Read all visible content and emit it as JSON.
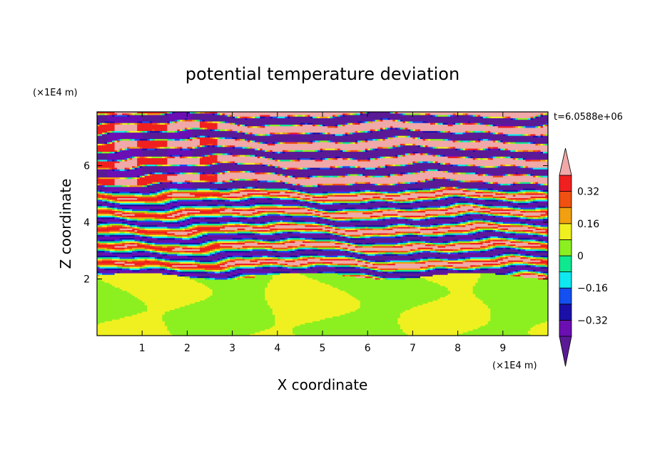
{
  "chart_data": {
    "type": "heatmap",
    "title": "potential temperature deviation",
    "xlabel": "X coordinate",
    "ylabel": "Z coordinate",
    "x_unit": "(×1E4 m)",
    "y_unit": "(×1E4 m)",
    "xlim": [
      0,
      10
    ],
    "ylim": [
      0,
      7.9
    ],
    "x_ticks": [
      1,
      2,
      3,
      4,
      5,
      6,
      7,
      8,
      9
    ],
    "y_ticks": [
      2,
      4,
      6
    ],
    "time_label": "t=6.0588e+06",
    "colorbar": {
      "levels": [
        -0.4,
        -0.32,
        -0.24,
        -0.16,
        -0.08,
        0,
        0.08,
        0.16,
        0.24,
        0.32,
        0.4
      ],
      "tick_labels": [
        "0.32",
        "0.16",
        "0",
        "−0.16",
        "−0.32"
      ],
      "tick_values": [
        0.32,
        0.16,
        0,
        -0.16,
        -0.32
      ],
      "colors": [
        "#5a1a96",
        "#6b0fb3",
        "#1a10a8",
        "#1450f0",
        "#10e8f0",
        "#10e890",
        "#8cf020",
        "#f0f020",
        "#f0a010",
        "#f05010",
        "#f02020",
        "#f0a8a8"
      ],
      "extend": "both"
    },
    "layers": {
      "lower_layer_z": [
        0,
        2.1
      ],
      "lower_layer_values": [
        0.0,
        0.08
      ],
      "band_z_top": 7.9
    }
  }
}
